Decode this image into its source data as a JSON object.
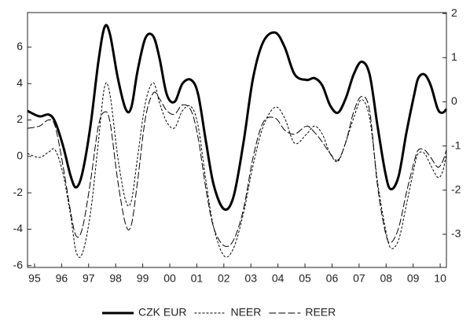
{
  "chart_data": {
    "type": "line",
    "x": [
      1994.74,
      1995.18,
      1995.52,
      1995.76,
      1996.05,
      1996.34,
      1996.54,
      1996.77,
      1997.07,
      1997.36,
      1997.59,
      1997.79,
      1998.08,
      1998.37,
      1998.58,
      1998.81,
      1999.1,
      1999.39,
      1999.62,
      1999.89,
      2000.18,
      2000.47,
      2000.79,
      2001.05,
      2001.34,
      2001.63,
      2002.01,
      2002.36,
      2002.73,
      2003.08,
      2003.46,
      2003.9,
      2004.25,
      2004.62,
      2005.06,
      2005.35,
      2005.64,
      2005.93,
      2006.22,
      2006.51,
      2006.8,
      2007.09,
      2007.39,
      2007.68,
      2007.97,
      2008.17,
      2008.46,
      2008.75,
      2009.04,
      2009.19,
      2009.42,
      2009.65,
      2009.91,
      2010.09,
      2010.23
    ],
    "series": [
      {
        "name": "CZK EUR",
        "color": "#000000",
        "linestyle": "solid",
        "axis": "y",
        "values": [
          2.5,
          2.2,
          2.3,
          1.9,
          0.6,
          -1.1,
          -1.7,
          -0.9,
          1.7,
          5.2,
          7.1,
          6.7,
          4.3,
          2.6,
          2.7,
          4.7,
          6.5,
          6.6,
          5.4,
          3.4,
          3.0,
          4.0,
          4.2,
          3.4,
          0.8,
          -1.6,
          -2.9,
          -2.2,
          0.8,
          4.3,
          6.3,
          6.8,
          6.0,
          4.5,
          4.2,
          4.3,
          3.9,
          2.8,
          2.4,
          3.2,
          4.5,
          5.2,
          4.5,
          1.7,
          -0.9,
          -1.8,
          -1.1,
          1.3,
          3.4,
          4.3,
          4.5,
          3.9,
          2.6,
          2.4,
          2.6
        ]
      },
      {
        "name": "NEER",
        "color": "#000000",
        "linestyle": "short-dash",
        "axis": "y2",
        "values": [
          -1.17,
          -1.26,
          -1.14,
          -1.09,
          -1.62,
          -2.6,
          -3.4,
          -3.43,
          -2.51,
          -0.91,
          0.34,
          0.16,
          -1.26,
          -2.24,
          -2.24,
          -1.26,
          -0.02,
          0.43,
          -0.02,
          -0.46,
          -0.59,
          -0.2,
          -0.11,
          -0.55,
          -1.8,
          -2.86,
          -3.49,
          -3.31,
          -2.51,
          -1.44,
          -0.55,
          -0.12,
          -0.37,
          -0.94,
          -0.73,
          -0.55,
          -0.73,
          -1.17,
          -1.35,
          -0.91,
          -0.37,
          0.05,
          -0.37,
          -1.8,
          -2.86,
          -3.31,
          -3.13,
          -2.33,
          -1.48,
          -1.17,
          -1.17,
          -1.44,
          -1.71,
          -1.58,
          -1.17
        ]
      },
      {
        "name": "REER",
        "color": "#000000",
        "linestyle": "long-dash",
        "axis": "y2",
        "values": [
          -0.6,
          -0.55,
          -0.41,
          -0.55,
          -1.44,
          -2.51,
          -3.04,
          -2.86,
          -1.8,
          -0.55,
          -0.23,
          -0.46,
          -1.8,
          -2.78,
          -2.78,
          -1.8,
          -0.37,
          0.2,
          0.07,
          -0.2,
          -0.28,
          -0.07,
          -0.2,
          -0.82,
          -1.98,
          -2.86,
          -3.26,
          -3.13,
          -2.42,
          -1.26,
          -0.46,
          -0.37,
          -0.64,
          -0.73,
          -0.55,
          -0.69,
          -0.91,
          -1.17,
          -1.32,
          -0.91,
          -0.23,
          0.12,
          -0.2,
          -1.89,
          -2.95,
          -3.19,
          -2.86,
          -2.06,
          -1.35,
          -1.09,
          -1.09,
          -1.26,
          -1.48,
          -1.35,
          -1.09
        ]
      }
    ],
    "xlim": [
      1994.74,
      2010.23
    ],
    "xticks": [
      {
        "value": 1995,
        "label": "95"
      },
      {
        "value": 1996,
        "label": "96"
      },
      {
        "value": 1997,
        "label": "97"
      },
      {
        "value": 1998,
        "label": "98"
      },
      {
        "value": 1999,
        "label": "99"
      },
      {
        "value": 2000,
        "label": "00"
      },
      {
        "value": 2001,
        "label": "01"
      },
      {
        "value": 2002,
        "label": "02"
      },
      {
        "value": 2003,
        "label": "03"
      },
      {
        "value": 2004,
        "label": "04"
      },
      {
        "value": 2005,
        "label": "05"
      },
      {
        "value": 2006,
        "label": "06"
      },
      {
        "value": 2007,
        "label": "07"
      },
      {
        "value": 2008,
        "label": "08"
      },
      {
        "value": 2009,
        "label": "09"
      },
      {
        "value": 2010,
        "label": "10"
      }
    ],
    "ylim": [
      -6.1,
      7.9
    ],
    "yticks": [
      -6,
      -4,
      -2,
      0,
      2,
      4,
      6
    ],
    "y2lim": [
      -3.75,
      2.02
    ],
    "y2ticks": [
      -3,
      -2,
      -1,
      0,
      1,
      2
    ],
    "grid": false,
    "legend": "bottom"
  }
}
